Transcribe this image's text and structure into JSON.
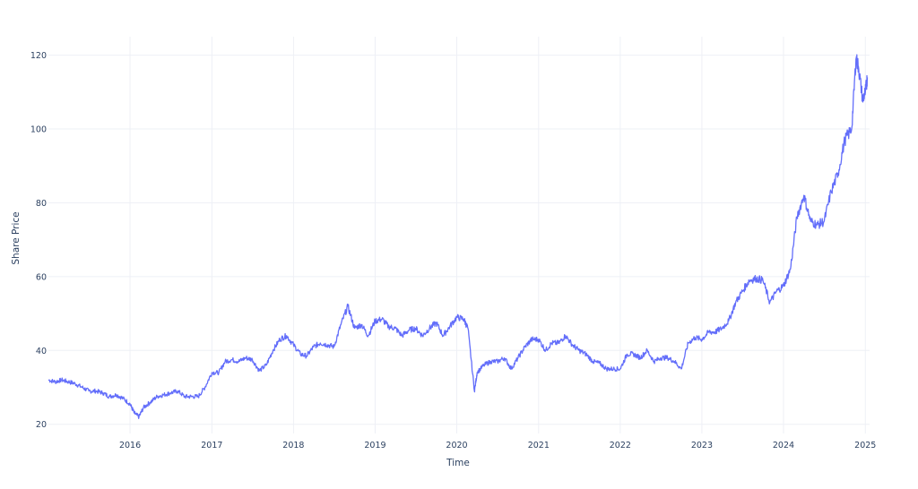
{
  "chart_data": {
    "type": "line",
    "title": "",
    "xlabel": "Time",
    "ylabel": "Share Price",
    "x_tick_labels": [
      "2016",
      "2017",
      "2018",
      "2019",
      "2020",
      "2021",
      "2022",
      "2023",
      "2024",
      "2025"
    ],
    "y_tick_labels": [
      "20",
      "40",
      "60",
      "80",
      "100",
      "120"
    ],
    "y_ticks": [
      20,
      40,
      60,
      80,
      100,
      120
    ],
    "xlim": [
      "2015-01-01",
      "2025-01-20"
    ],
    "ylim": [
      17.5,
      125
    ],
    "grid": true,
    "line_color": "#636efa",
    "series": [
      {
        "x": [
          "2015-01-01",
          "2015-02-01",
          "2015-03-01",
          "2015-04-01",
          "2015-05-01",
          "2015-06-01",
          "2015-07-01",
          "2015-08-01",
          "2015-09-01",
          "2015-10-01",
          "2015-11-01",
          "2015-12-01",
          "2016-01-01",
          "2016-01-20",
          "2016-02-10",
          "2016-03-01",
          "2016-04-01",
          "2016-05-01",
          "2016-06-01",
          "2016-07-01",
          "2016-08-01",
          "2016-09-01",
          "2016-10-01",
          "2016-11-01",
          "2016-12-01",
          "2017-01-01",
          "2017-02-01",
          "2017-03-01",
          "2017-04-01",
          "2017-05-01",
          "2017-06-01",
          "2017-07-01",
          "2017-08-01",
          "2017-09-01",
          "2017-10-01",
          "2017-11-01",
          "2017-12-01",
          "2018-01-01",
          "2018-02-01",
          "2018-03-01",
          "2018-04-01",
          "2018-05-01",
          "2018-06-01",
          "2018-07-01",
          "2018-08-01",
          "2018-09-01",
          "2018-10-01",
          "2018-11-01",
          "2018-12-01",
          "2019-01-01",
          "2019-02-01",
          "2019-03-01",
          "2019-04-01",
          "2019-05-01",
          "2019-06-01",
          "2019-07-01",
          "2019-08-01",
          "2019-09-01",
          "2019-10-01",
          "2019-11-01",
          "2019-12-01",
          "2020-01-01",
          "2020-02-01",
          "2020-02-20",
          "2020-03-20",
          "2020-04-01",
          "2020-05-01",
          "2020-06-01",
          "2020-07-01",
          "2020-08-01",
          "2020-09-01",
          "2020-10-01",
          "2020-11-01",
          "2020-12-01",
          "2021-01-01",
          "2021-02-01",
          "2021-03-01",
          "2021-04-01",
          "2021-05-01",
          "2021-06-01",
          "2021-07-01",
          "2021-08-01",
          "2021-09-01",
          "2021-10-01",
          "2021-11-01",
          "2021-12-01",
          "2022-01-01",
          "2022-02-01",
          "2022-03-01",
          "2022-04-01",
          "2022-05-01",
          "2022-06-01",
          "2022-07-01",
          "2022-08-01",
          "2022-09-01",
          "2022-10-01",
          "2022-11-01",
          "2022-12-01",
          "2023-01-01",
          "2023-02-01",
          "2023-03-01",
          "2023-04-01",
          "2023-05-01",
          "2023-06-01",
          "2023-07-01",
          "2023-08-01",
          "2023-09-01",
          "2023-10-01",
          "2023-11-01",
          "2023-12-01",
          "2024-01-01",
          "2024-02-01",
          "2024-03-01",
          "2024-04-01",
          "2024-05-01",
          "2024-06-01",
          "2024-07-01",
          "2024-08-01",
          "2024-09-01",
          "2024-10-01",
          "2024-11-01",
          "2024-11-20",
          "2024-12-01",
          "2024-12-20",
          "2025-01-01",
          "2025-01-10"
        ],
        "y": [
          32,
          31.5,
          32,
          31.5,
          31,
          30,
          29,
          29,
          28.5,
          27.5,
          28,
          27,
          25.5,
          23,
          22,
          24.5,
          26,
          27.5,
          28,
          28.5,
          29,
          27.5,
          27.5,
          27.5,
          30,
          34,
          34,
          37,
          37.5,
          37,
          38,
          37.5,
          34.5,
          36,
          40,
          43,
          44,
          41.5,
          39,
          38.5,
          41,
          42,
          41.5,
          41,
          47,
          52,
          46,
          47,
          44,
          48,
          48.5,
          46.5,
          46,
          44,
          45.5,
          46,
          44,
          46,
          47.5,
          44,
          46.5,
          49,
          48.5,
          46,
          29,
          34,
          36,
          37,
          37,
          38,
          35,
          38,
          41,
          43,
          43,
          40,
          42,
          42,
          44,
          41.5,
          40,
          39,
          37,
          36.5,
          35,
          35,
          35,
          39,
          39,
          38,
          40,
          37,
          38,
          38,
          37,
          35,
          42,
          43.5,
          43,
          45,
          45,
          46,
          48,
          53,
          56,
          59,
          59.5,
          59,
          53,
          56,
          57.5,
          62,
          76,
          82,
          75,
          74,
          75,
          83,
          88,
          97,
          100,
          119,
          117,
          108,
          110,
          114
        ]
      }
    ]
  }
}
